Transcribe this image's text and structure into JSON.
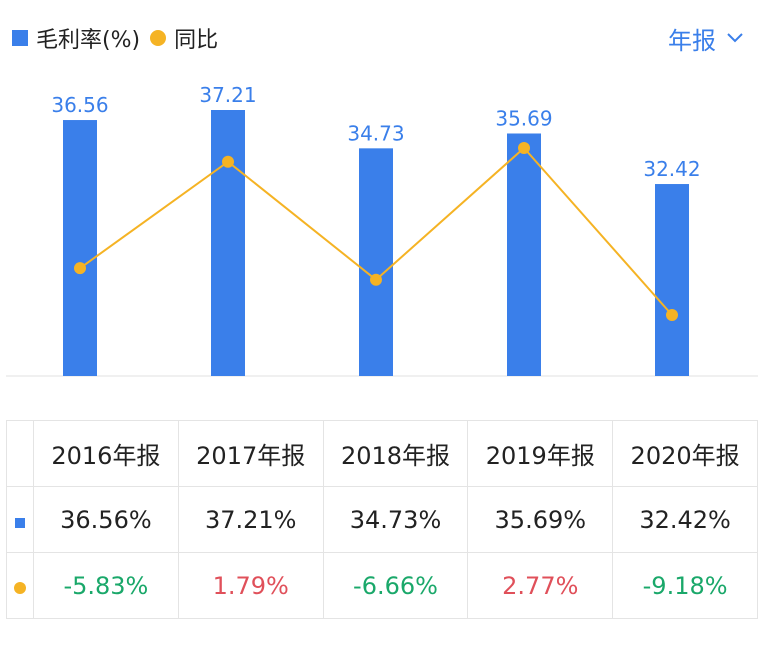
{
  "legend": {
    "bar_label": "毛利率(%)",
    "line_label": "同比"
  },
  "period_selector": {
    "label": "年报"
  },
  "colors": {
    "bar": "#3a7fea",
    "line": "#f5b324",
    "negative": "#1aa86a",
    "positive": "#e0505a"
  },
  "chart_data": {
    "type": "bar",
    "categories": [
      "2016年报",
      "2017年报",
      "2018年报",
      "2019年报",
      "2020年报"
    ],
    "series": [
      {
        "name": "毛利率(%)",
        "type": "bar",
        "values": [
          36.56,
          37.21,
          34.73,
          35.69,
          32.42
        ]
      },
      {
        "name": "同比",
        "type": "line",
        "values": [
          -5.83,
          1.79,
          -6.66,
          2.77,
          -9.18
        ]
      }
    ],
    "bar_labels": [
      "36.56",
      "37.21",
      "34.73",
      "35.69",
      "32.42"
    ],
    "grid": false
  },
  "table": {
    "headers": [
      "2016年报",
      "2017年报",
      "2018年报",
      "2019年报",
      "2020年报"
    ],
    "gross_margin": [
      "36.56%",
      "37.21%",
      "34.73%",
      "35.69%",
      "32.42%"
    ],
    "yoy": [
      "-5.83%",
      "1.79%",
      "-6.66%",
      "2.77%",
      "-9.18%"
    ]
  }
}
